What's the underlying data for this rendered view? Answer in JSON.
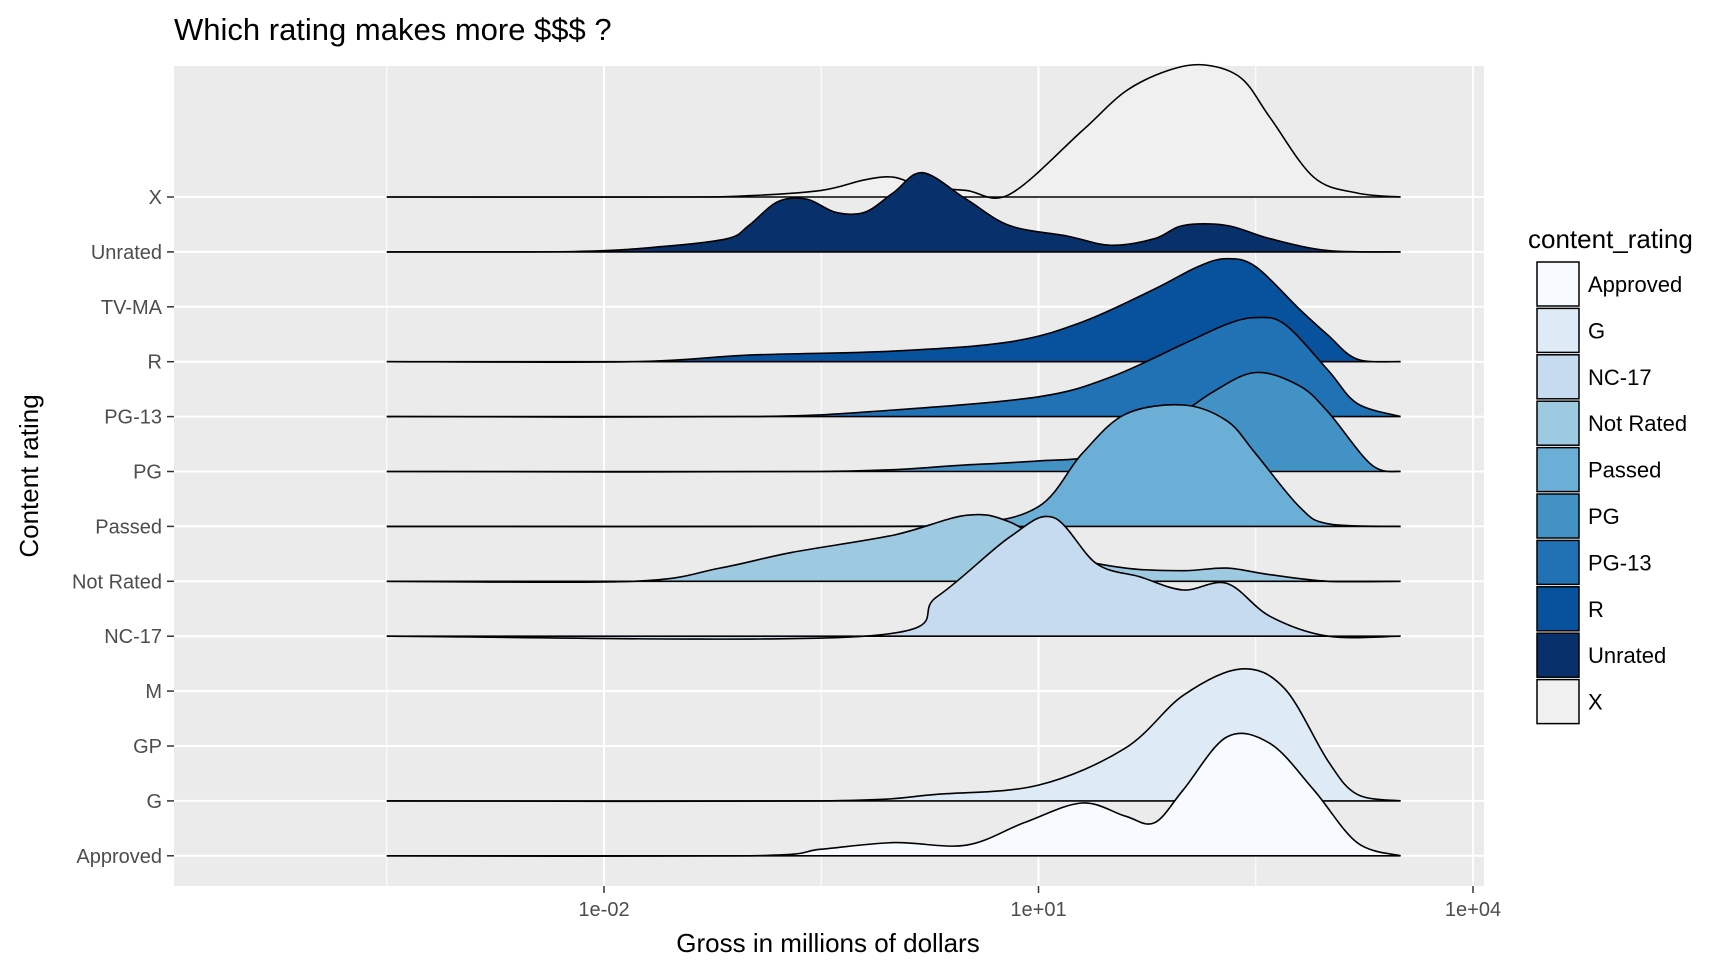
{
  "chart_data": {
    "type": "ridgeline",
    "title": "Which rating makes more $$$ ?",
    "xlabel": "Gross in millions of dollars",
    "ylabel": "Content rating",
    "x_scale": "log10",
    "x_range_millions": [
      0.0001,
      10000
    ],
    "x_ticks": [
      {
        "value": 0.01,
        "label": "1e-02"
      },
      {
        "value": 10,
        "label": "1e+01"
      },
      {
        "value": 10000,
        "label": "1e+04"
      }
    ],
    "categories": [
      "Approved",
      "G",
      "GP",
      "M",
      "NC-17",
      "Not Rated",
      "Passed",
      "PG",
      "PG-13",
      "R",
      "TV-MA",
      "Unrated",
      "X"
    ],
    "grid": true,
    "panel_background": "#ebebeb",
    "legend": {
      "title": "content_rating",
      "position": "right",
      "entries": [
        {
          "label": "Approved",
          "color": "#f7fbff"
        },
        {
          "label": "G",
          "color": "#deebf7"
        },
        {
          "label": "NC-17",
          "color": "#c6dbef"
        },
        {
          "label": "Not Rated",
          "color": "#9ecae1"
        },
        {
          "label": "Passed",
          "color": "#6baed6"
        },
        {
          "label": "PG",
          "color": "#4292c6"
        },
        {
          "label": "PG-13",
          "color": "#2171b5"
        },
        {
          "label": "R",
          "color": "#08519c"
        },
        {
          "label": "Unrated",
          "color": "#08306b"
        },
        {
          "label": "X",
          "color": "#f0f0f0"
        }
      ]
    },
    "series": [
      {
        "rating": "X",
        "color": "#f0f0f0",
        "baseline_row": "X",
        "x_min": -3.5,
        "x_max": 3.5,
        "points": [
          [
            -3.5,
            0
          ],
          [
            -1.5,
            0
          ],
          [
            -1.0,
            0.01
          ],
          [
            -0.5,
            0.05
          ],
          [
            -0.2,
            0.13
          ],
          [
            0.0,
            0.15
          ],
          [
            0.2,
            0.08
          ],
          [
            0.5,
            0.05
          ],
          [
            0.8,
            0.02
          ],
          [
            1.3,
            0.5
          ],
          [
            1.6,
            0.8
          ],
          [
            1.9,
            0.96
          ],
          [
            2.15,
            1.0
          ],
          [
            2.4,
            0.9
          ],
          [
            2.6,
            0.6
          ],
          [
            2.9,
            0.15
          ],
          [
            3.2,
            0.03
          ],
          [
            3.5,
            0
          ]
        ]
      },
      {
        "rating": "Unrated",
        "color": "#08306b",
        "baseline_row": "Unrated",
        "x_min": -3.5,
        "x_max": 3.5,
        "points": [
          [
            -3.5,
            0
          ],
          [
            -2.2,
            0.003
          ],
          [
            -1.6,
            0.04
          ],
          [
            -1.15,
            0.1
          ],
          [
            -1.0,
            0.2
          ],
          [
            -0.8,
            0.38
          ],
          [
            -0.6,
            0.4
          ],
          [
            -0.4,
            0.3
          ],
          [
            -0.2,
            0.3
          ],
          [
            0.0,
            0.45
          ],
          [
            0.2,
            0.6
          ],
          [
            0.5,
            0.4
          ],
          [
            0.8,
            0.2
          ],
          [
            1.2,
            0.12
          ],
          [
            1.5,
            0.05
          ],
          [
            1.8,
            0.1
          ],
          [
            2.0,
            0.2
          ],
          [
            2.3,
            0.2
          ],
          [
            2.6,
            0.1
          ],
          [
            3.0,
            0.01
          ],
          [
            3.5,
            0
          ]
        ]
      },
      {
        "rating": "TV-MA",
        "color": "#08519c",
        "baseline_row": "R",
        "x_min": -3.5,
        "x_max": 3.5,
        "points": [
          [
            -3.5,
            0
          ],
          [
            -1.8,
            0
          ],
          [
            -1.0,
            0.05
          ],
          [
            0.0,
            0.08
          ],
          [
            0.8,
            0.15
          ],
          [
            1.3,
            0.3
          ],
          [
            1.8,
            0.55
          ],
          [
            2.1,
            0.72
          ],
          [
            2.3,
            0.78
          ],
          [
            2.5,
            0.72
          ],
          [
            2.8,
            0.4
          ],
          [
            3.0,
            0.2
          ],
          [
            3.2,
            0.02
          ],
          [
            3.5,
            0
          ]
        ]
      },
      {
        "rating": "R",
        "color": "#2171b5",
        "baseline_row": "PG-13",
        "x_min": -3.5,
        "x_max": 3.5,
        "points": [
          [
            -3.5,
            0
          ],
          [
            -1.0,
            0
          ],
          [
            0.0,
            0.05
          ],
          [
            1.0,
            0.15
          ],
          [
            1.5,
            0.3
          ],
          [
            2.0,
            0.55
          ],
          [
            2.3,
            0.7
          ],
          [
            2.5,
            0.75
          ],
          [
            2.7,
            0.7
          ],
          [
            3.0,
            0.35
          ],
          [
            3.2,
            0.1
          ],
          [
            3.5,
            0
          ]
        ]
      },
      {
        "rating": "PG-13",
        "color": "#4292c6",
        "baseline_row": "PG",
        "x_min": -3.5,
        "x_max": 3.5,
        "points": [
          [
            -3.5,
            0
          ],
          [
            -0.5,
            0
          ],
          [
            0.5,
            0.05
          ],
          [
            1.0,
            0.08
          ],
          [
            1.4,
            0.12
          ],
          [
            1.8,
            0.3
          ],
          [
            2.2,
            0.6
          ],
          [
            2.5,
            0.75
          ],
          [
            2.8,
            0.65
          ],
          [
            3.0,
            0.45
          ],
          [
            3.3,
            0.05
          ],
          [
            3.5,
            0
          ]
        ]
      },
      {
        "rating": "PG",
        "color": "#6baed6",
        "baseline_row": "Passed",
        "x_min": -3.5,
        "x_max": 3.5,
        "points": [
          [
            -3.5,
            0
          ],
          [
            -0.5,
            0
          ],
          [
            0.5,
            0.02
          ],
          [
            1.0,
            0.15
          ],
          [
            1.3,
            0.55
          ],
          [
            1.6,
            0.85
          ],
          [
            2.0,
            0.92
          ],
          [
            2.3,
            0.8
          ],
          [
            2.5,
            0.55
          ],
          [
            2.8,
            0.15
          ],
          [
            3.0,
            0.02
          ],
          [
            3.5,
            0
          ]
        ]
      },
      {
        "rating": "Passed",
        "color": "#9ecae1",
        "baseline_row": "Not Rated",
        "x_min": -3.5,
        "x_max": 3.5,
        "points": [
          [
            -3.5,
            0
          ],
          [
            -1.8,
            0
          ],
          [
            -1.2,
            0.1
          ],
          [
            -0.7,
            0.22
          ],
          [
            0.0,
            0.35
          ],
          [
            0.5,
            0.5
          ],
          [
            0.8,
            0.45
          ],
          [
            1.2,
            0.2
          ],
          [
            1.6,
            0.1
          ],
          [
            2.0,
            0.08
          ],
          [
            2.3,
            0.1
          ],
          [
            2.6,
            0.05
          ],
          [
            3.0,
            0
          ],
          [
            3.5,
            0
          ]
        ]
      },
      {
        "rating": "Not Rated",
        "color": "#c6dbef",
        "baseline_row": "NC-17",
        "x_min": -3.5,
        "x_max": 3.5,
        "points": [
          [
            -3.5,
            0
          ],
          [
            -0.2,
            0
          ],
          [
            0.3,
            0.3
          ],
          [
            0.8,
            0.75
          ],
          [
            1.1,
            0.9
          ],
          [
            1.4,
            0.55
          ],
          [
            1.7,
            0.45
          ],
          [
            2.0,
            0.35
          ],
          [
            2.3,
            0.4
          ],
          [
            2.6,
            0.15
          ],
          [
            3.0,
            0
          ],
          [
            3.5,
            0
          ]
        ]
      },
      {
        "rating": "NC-17",
        "color": "#deebf7",
        "baseline_row": "G",
        "x_min": -3.5,
        "x_max": 3.5,
        "points": [
          [
            -3.5,
            0
          ],
          [
            -0.5,
            0
          ],
          [
            0.3,
            0.05
          ],
          [
            1.0,
            0.12
          ],
          [
            1.6,
            0.4
          ],
          [
            2.0,
            0.8
          ],
          [
            2.4,
            1.0
          ],
          [
            2.7,
            0.85
          ],
          [
            3.0,
            0.3
          ],
          [
            3.2,
            0.05
          ],
          [
            3.5,
            0
          ]
        ]
      },
      {
        "rating": "G",
        "color": "#f7fbff",
        "baseline_row": "Approved",
        "x_min": -3.5,
        "x_max": 3.5,
        "points": [
          [
            -3.5,
            0
          ],
          [
            -1.0,
            0
          ],
          [
            -0.5,
            0.05
          ],
          [
            0.0,
            0.1
          ],
          [
            0.5,
            0.08
          ],
          [
            0.9,
            0.25
          ],
          [
            1.3,
            0.4
          ],
          [
            1.6,
            0.3
          ],
          [
            1.8,
            0.25
          ],
          [
            2.0,
            0.5
          ],
          [
            2.3,
            0.9
          ],
          [
            2.6,
            0.85
          ],
          [
            2.9,
            0.5
          ],
          [
            3.2,
            0.1
          ],
          [
            3.5,
            0
          ]
        ]
      }
    ]
  }
}
